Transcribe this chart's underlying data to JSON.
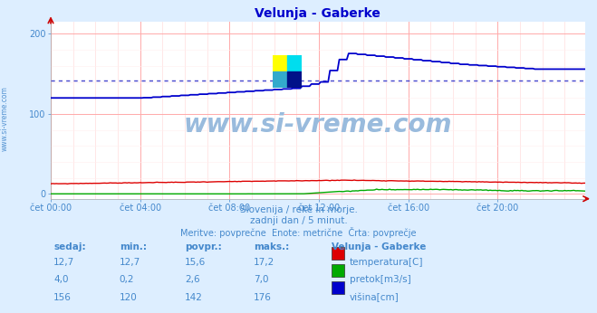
{
  "title": "Velunja - Gaberke",
  "bg_color": "#ddeeff",
  "plot_bg_color": "#ffffff",
  "grid_color_v": "#ddbbbb",
  "grid_color_h": "#ffaaaa",
  "tick_color": "#4488cc",
  "text_color": "#4488cc",
  "xtick_labels": [
    "čet 00:00",
    "čet 04:00",
    "čet 08:00",
    "čet 12:00",
    "čet 16:00",
    "čet 20:00"
  ],
  "xtick_positions": [
    0,
    48,
    96,
    144,
    192,
    240
  ],
  "ytick_positions": [
    0,
    100,
    200
  ],
  "ytick_labels": [
    "0",
    "100",
    "200"
  ],
  "ymax": 215,
  "ymin": -6,
  "n_points": 288,
  "subtitle1": "Slovenija / reke in morje.",
  "subtitle2": "zadnji dan / 5 minut.",
  "subtitle3": "Meritve: povprečne  Enote: metrične  Črta: povprečje",
  "table_headers": [
    "sedaj:",
    "min.:",
    "povpr.:",
    "maks.:"
  ],
  "table_row1": [
    "12,7",
    "12,7",
    "15,6",
    "17,2",
    "temperatura[C]"
  ],
  "table_row2": [
    "4,0",
    "0,2",
    "2,6",
    "7,0",
    "pretok[m3/s]"
  ],
  "table_row3": [
    "156",
    "120",
    "142",
    "176",
    "višina[cm]"
  ],
  "legend_title": "Velunja - Gaberke",
  "temp_color": "#dd0000",
  "flow_color": "#00aa00",
  "height_color": "#0000cc",
  "avg_line_color": "#0000cc",
  "watermark_text": "www.si-vreme.com",
  "watermark_color": "#99bbdd",
  "avg_height": 142,
  "left_label": "www.si-vreme.com"
}
